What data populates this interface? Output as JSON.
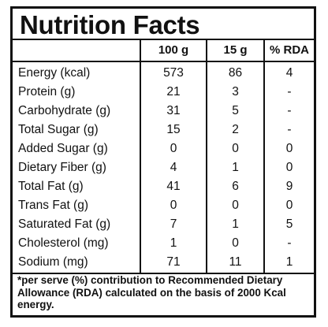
{
  "title": "Nutrition Facts",
  "headers": [
    "100 g",
    "15 g",
    "% RDA"
  ],
  "rows": [
    {
      "label": "Energy (kcal)",
      "per100": "573",
      "per15": "86",
      "rda": "4"
    },
    {
      "label": "Protein (g)",
      "per100": "21",
      "per15": "3",
      "rda": "-"
    },
    {
      "label": "Carbohydrate (g)",
      "per100": "31",
      "per15": "5",
      "rda": "-"
    },
    {
      "label": "Total Sugar (g)",
      "per100": "15",
      "per15": "2",
      "rda": "-"
    },
    {
      "label": "Added Sugar (g)",
      "per100": "0",
      "per15": "0",
      "rda": "0"
    },
    {
      "label": "Dietary Fiber (g)",
      "per100": "4",
      "per15": "1",
      "rda": "0"
    },
    {
      "label": "Total Fat (g)",
      "per100": "41",
      "per15": "6",
      "rda": "9"
    },
    {
      "label": "Trans Fat (g)",
      "per100": "0",
      "per15": "0",
      "rda": "0"
    },
    {
      "label": "Saturated Fat (g)",
      "per100": "7",
      "per15": "1",
      "rda": "5"
    },
    {
      "label": "Cholesterol (mg)",
      "per100": "1",
      "per15": "0",
      "rda": "-"
    },
    {
      "label": "Sodium (mg)",
      "per100": "71",
      "per15": "11",
      "rda": "1"
    }
  ],
  "footnote": "*per serve (%) contribution to Recommended Dietary Allowance (RDA) calculated on the basis of 2000 Kcal energy."
}
